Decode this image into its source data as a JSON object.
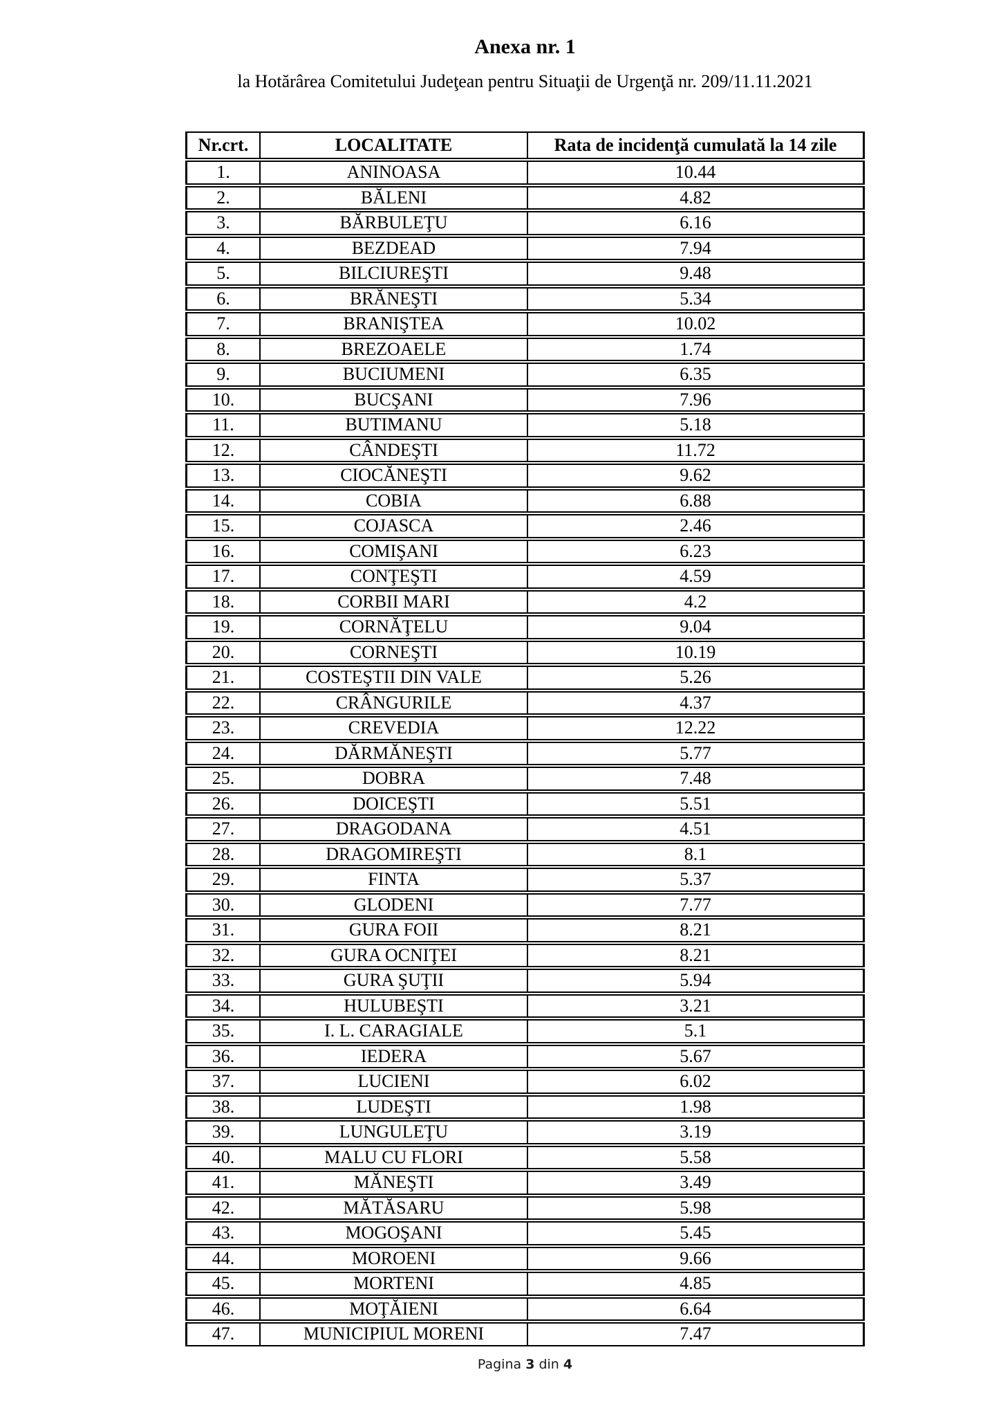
{
  "document": {
    "title": "Anexa nr. 1",
    "subtitle": "la Hotărârea Comitetului Judeţean pentru Situaţii de Urgenţă nr. 209/11.11.2021",
    "footer": {
      "label": "Pagina",
      "current_page": "3",
      "of_word": "din",
      "total_pages": "4"
    }
  },
  "table": {
    "headers": {
      "nr": "Nr.crt.",
      "localitate": "LOCALITATE",
      "rata": "Rata de incidenţă cumulată la 14 zile"
    },
    "rows": [
      {
        "nr": "1.",
        "localitate": "ANINOASA",
        "rata": "10.44"
      },
      {
        "nr": "2.",
        "localitate": "BĂLENI",
        "rata": "4.82"
      },
      {
        "nr": "3.",
        "localitate": "BĂRBULEŢU",
        "rata": "6.16"
      },
      {
        "nr": "4.",
        "localitate": "BEZDEAD",
        "rata": "7.94"
      },
      {
        "nr": "5.",
        "localitate": "BILCIUREŞTI",
        "rata": "9.48"
      },
      {
        "nr": "6.",
        "localitate": "BRĂNEŞTI",
        "rata": "5.34"
      },
      {
        "nr": "7.",
        "localitate": "BRANIŞTEA",
        "rata": "10.02"
      },
      {
        "nr": "8.",
        "localitate": "BREZOAELE",
        "rata": "1.74"
      },
      {
        "nr": "9.",
        "localitate": "BUCIUMENI",
        "rata": "6.35"
      },
      {
        "nr": "10.",
        "localitate": "BUCŞANI",
        "rata": "7.96"
      },
      {
        "nr": "11.",
        "localitate": "BUTIMANU",
        "rata": "5.18"
      },
      {
        "nr": "12.",
        "localitate": "CÂNDEŞTI",
        "rata": "11.72"
      },
      {
        "nr": "13.",
        "localitate": "CIOCĂNEŞTI",
        "rata": "9.62"
      },
      {
        "nr": "14.",
        "localitate": "COBIA",
        "rata": "6.88"
      },
      {
        "nr": "15.",
        "localitate": "COJASCA",
        "rata": "2.46"
      },
      {
        "nr": "16.",
        "localitate": "COMIŞANI",
        "rata": "6.23"
      },
      {
        "nr": "17.",
        "localitate": "CONŢEŞTI",
        "rata": "4.59"
      },
      {
        "nr": "18.",
        "localitate": "CORBII MARI",
        "rata": "4.2"
      },
      {
        "nr": "19.",
        "localitate": "CORNĂŢELU",
        "rata": "9.04"
      },
      {
        "nr": "20.",
        "localitate": "CORNEŞTI",
        "rata": "10.19"
      },
      {
        "nr": "21.",
        "localitate": "COSTEŞTII DIN VALE",
        "rata": "5.26"
      },
      {
        "nr": "22.",
        "localitate": "CRÂNGURILE",
        "rata": "4.37"
      },
      {
        "nr": "23.",
        "localitate": "CREVEDIA",
        "rata": "12.22"
      },
      {
        "nr": "24.",
        "localitate": "DĂRMĂNEŞTI",
        "rata": "5.77"
      },
      {
        "nr": "25.",
        "localitate": "DOBRA",
        "rata": "7.48"
      },
      {
        "nr": "26.",
        "localitate": "DOICEŞTI",
        "rata": "5.51"
      },
      {
        "nr": "27.",
        "localitate": "DRAGODANA",
        "rata": "4.51"
      },
      {
        "nr": "28.",
        "localitate": "DRAGOMIREŞTI",
        "rata": "8.1"
      },
      {
        "nr": "29.",
        "localitate": "FINTA",
        "rata": "5.37"
      },
      {
        "nr": "30.",
        "localitate": "GLODENI",
        "rata": "7.77"
      },
      {
        "nr": "31.",
        "localitate": "GURA FOII",
        "rata": "8.21"
      },
      {
        "nr": "32.",
        "localitate": "GURA OCNIŢEI",
        "rata": "8.21"
      },
      {
        "nr": "33.",
        "localitate": "GURA ŞUŢII",
        "rata": "5.94"
      },
      {
        "nr": "34.",
        "localitate": "HULUBEŞTI",
        "rata": "3.21"
      },
      {
        "nr": "35.",
        "localitate": "I. L. CARAGIALE",
        "rata": "5.1"
      },
      {
        "nr": "36.",
        "localitate": "IEDERA",
        "rata": "5.67"
      },
      {
        "nr": "37.",
        "localitate": "LUCIENI",
        "rata": "6.02"
      },
      {
        "nr": "38.",
        "localitate": "LUDEŞTI",
        "rata": "1.98"
      },
      {
        "nr": "39.",
        "localitate": "LUNGULEŢU",
        "rata": "3.19"
      },
      {
        "nr": "40.",
        "localitate": "MALU CU FLORI",
        "rata": "5.58"
      },
      {
        "nr": "41.",
        "localitate": "MĂNEŞTI",
        "rata": "3.49"
      },
      {
        "nr": "42.",
        "localitate": "MĂTĂSARU",
        "rata": "5.98"
      },
      {
        "nr": "43.",
        "localitate": "MOGOŞANI",
        "rata": "5.45"
      },
      {
        "nr": "44.",
        "localitate": "MOROENI",
        "rata": "9.66"
      },
      {
        "nr": "45.",
        "localitate": "MORTENI",
        "rata": "4.85"
      },
      {
        "nr": "46.",
        "localitate": "MOŢĂIENI",
        "rata": "6.64"
      },
      {
        "nr": "47.",
        "localitate": "MUNICIPIUL MORENI",
        "rata": "7.47"
      }
    ]
  }
}
